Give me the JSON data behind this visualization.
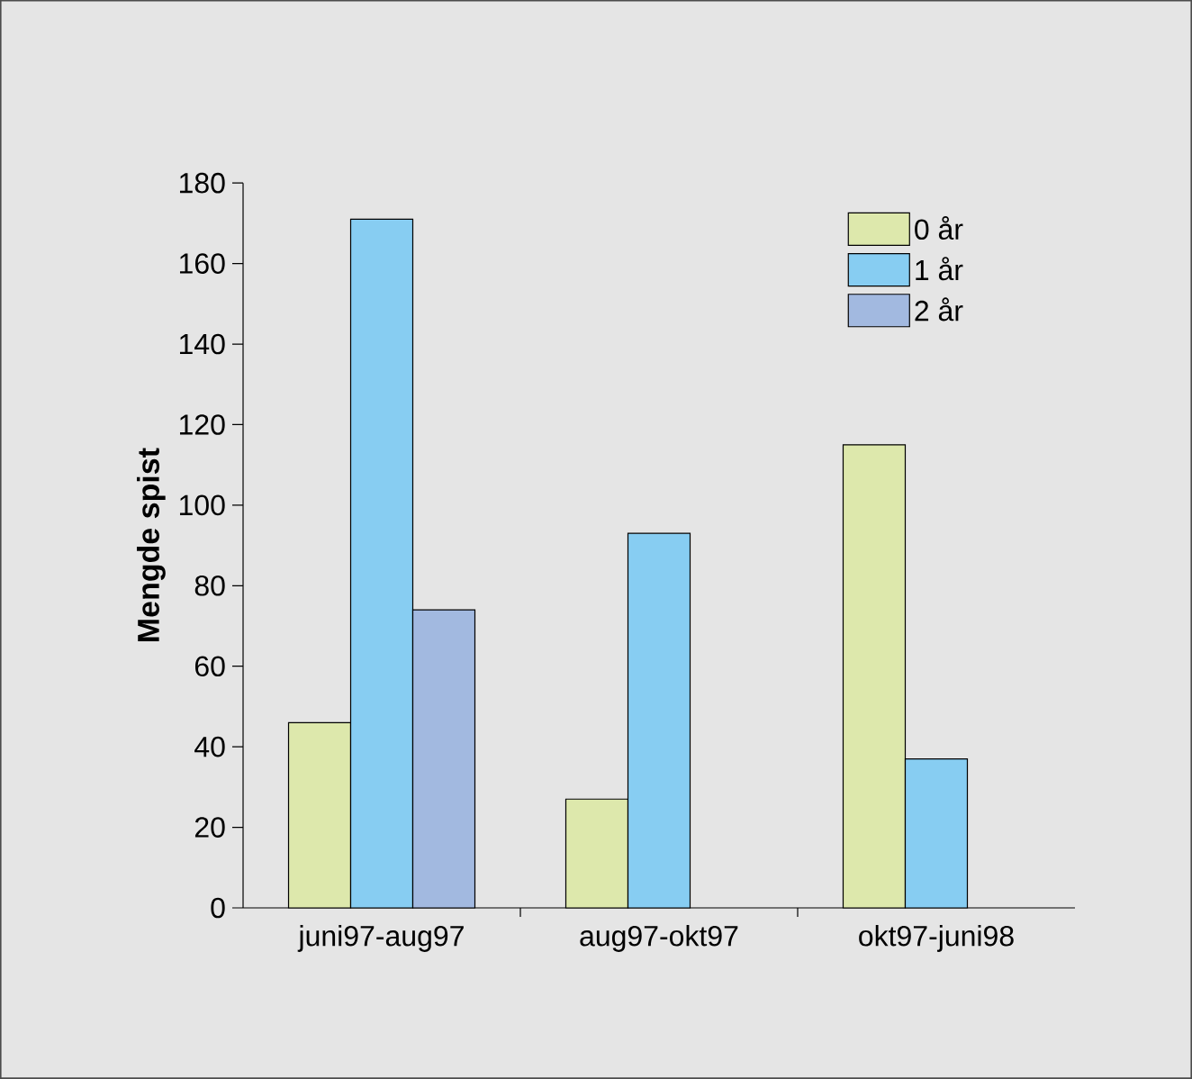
{
  "chart_data": {
    "type": "bar",
    "ylabel": "Mengde spist",
    "categories": [
      "juni97-aug97",
      "aug97-okt97",
      "okt97-juni98"
    ],
    "series": [
      {
        "name": "0 år",
        "color": "#dde8ac",
        "values": [
          46,
          27,
          115
        ]
      },
      {
        "name": "1 år",
        "color": "#87cdf2",
        "values": [
          171,
          93,
          37
        ]
      },
      {
        "name": "2 år",
        "color": "#a2b9e0",
        "values": [
          74,
          null,
          null
        ]
      }
    ],
    "ylim": [
      0,
      180
    ],
    "yticks": [
      0,
      20,
      40,
      60,
      80,
      100,
      120,
      140,
      160,
      180
    ],
    "grid": false,
    "legend": "top right"
  }
}
